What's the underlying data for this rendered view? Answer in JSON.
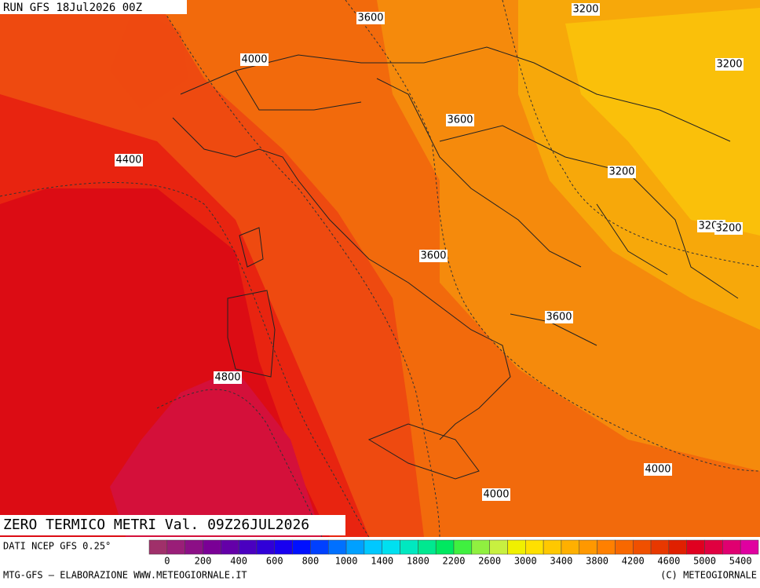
{
  "header": {
    "run": "RUN GFS 18Jul2026 00Z"
  },
  "contour_labels": [
    "3600",
    "3200",
    "4000",
    "3200",
    "3600",
    "4400",
    "3200",
    "3200",
    "3200",
    "3600",
    "3600",
    "4800",
    "4000",
    "4000"
  ],
  "footer": {
    "title": "ZERO TERMICO METRI Val. 09Z26JUL2026",
    "source": "DATI NCEP GFS 0.25°",
    "credit": "MTG-GFS — ELABORAZIONE WWW.METEOGIORNALE.IT",
    "copyright": "(C) METEOGIORNALE"
  },
  "scale": {
    "labels": [
      "0",
      "200",
      "400",
      "600",
      "800",
      "1000",
      "1400",
      "1800",
      "2200",
      "2600",
      "3000",
      "3400",
      "3800",
      "4200",
      "4600",
      "5000",
      "5400"
    ],
    "colors": [
      "#a0306a",
      "#9a1e78",
      "#8c0f86",
      "#7a0096",
      "#6400a8",
      "#4a00c0",
      "#3000d8",
      "#1800f0",
      "#0010ff",
      "#0040ff",
      "#0070ff",
      "#00a0ff",
      "#00c8ff",
      "#00e0f0",
      "#00e8c0",
      "#00e890",
      "#00e860",
      "#40f040",
      "#90f040",
      "#c8f040",
      "#f0f000",
      "#ffe000",
      "#ffc800",
      "#ffb000",
      "#ff9800",
      "#ff8000",
      "#f86800",
      "#f05000",
      "#e83800",
      "#e02000",
      "#e00020",
      "#e00040",
      "#e00070",
      "#e000a0"
    ]
  }
}
